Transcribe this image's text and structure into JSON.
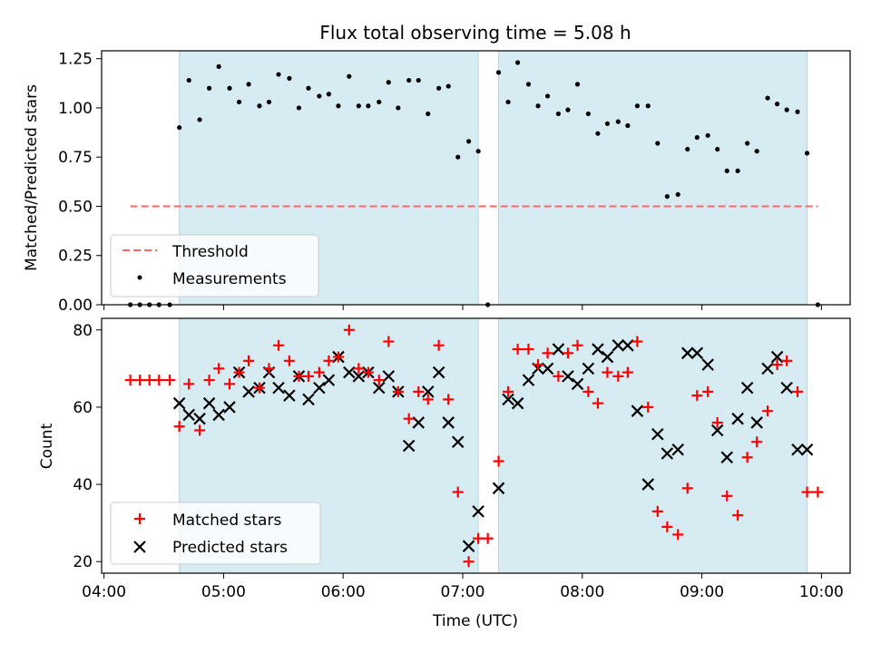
{
  "chart_data": {
    "title": "Flux total observing time = 5.08 h",
    "xlabel": "Time (UTC)",
    "x_ticks": [
      "04:00",
      "05:00",
      "06:00",
      "07:00",
      "08:00",
      "09:00",
      "10:00"
    ],
    "x_range_hours": [
      3.98,
      10.24
    ],
    "shaded_intervals_hours": [
      [
        4.63,
        7.13
      ],
      [
        7.3,
        9.88
      ]
    ],
    "colors": {
      "shade": "#add8e6",
      "threshold": "#ff6666",
      "matched": "#ff0000",
      "predicted": "#000000",
      "measurements": "#000000"
    },
    "charts": [
      {
        "type": "scatter",
        "ylabel": "Matched/Predicted stars",
        "ylim": [
          0,
          1.29
        ],
        "y_ticks": [
          "0.00",
          "0.25",
          "0.50",
          "0.75",
          "1.00",
          "1.25"
        ],
        "legend": {
          "placement": "lower-left",
          "entries": [
            "Threshold",
            "Measurements"
          ]
        },
        "threshold": {
          "name": "Threshold",
          "y": 0.5,
          "x_range": [
            4.22,
            9.97
          ]
        },
        "series": [
          {
            "name": "Measurements",
            "x": [
              4.22,
              4.3,
              4.38,
              4.46,
              4.55,
              4.63,
              4.71,
              4.8,
              4.88,
              4.96,
              5.05,
              5.13,
              5.21,
              5.3,
              5.38,
              5.46,
              5.55,
              5.63,
              5.71,
              5.8,
              5.88,
              5.96,
              6.05,
              6.13,
              6.21,
              6.3,
              6.38,
              6.46,
              6.55,
              6.63,
              6.71,
              6.8,
              6.88,
              6.96,
              7.05,
              7.13,
              7.21,
              7.3,
              7.38,
              7.46,
              7.55,
              7.63,
              7.71,
              7.8,
              7.88,
              7.96,
              8.05,
              8.13,
              8.21,
              8.3,
              8.38,
              8.46,
              8.55,
              8.63,
              8.71,
              8.8,
              8.88,
              8.96,
              9.05,
              9.13,
              9.21,
              9.3,
              9.38,
              9.46,
              9.55,
              9.63,
              9.71,
              9.8,
              9.88,
              9.97
            ],
            "y": [
              0,
              0,
              0,
              0,
              0,
              0.9,
              1.14,
              0.94,
              1.1,
              1.21,
              1.1,
              1.03,
              1.12,
              1.01,
              1.03,
              1.17,
              1.15,
              1.0,
              1.1,
              1.06,
              1.07,
              1.01,
              1.16,
              1.01,
              1.01,
              1.03,
              1.13,
              1.0,
              1.14,
              1.14,
              0.97,
              1.1,
              1.11,
              0.75,
              0.83,
              0.78,
              0.0,
              1.18,
              1.03,
              1.23,
              1.12,
              1.01,
              1.06,
              0.97,
              0.99,
              1.12,
              0.97,
              0.87,
              0.92,
              0.93,
              0.91,
              1.01,
              1.01,
              0.82,
              0.55,
              0.56,
              0.79,
              0.85,
              0.86,
              0.79,
              0.68,
              0.68,
              0.82,
              0.78,
              1.05,
              1.02,
              0.99,
              0.98,
              0.77,
              0.0
            ]
          }
        ]
      },
      {
        "type": "scatter",
        "ylabel": "Count",
        "ylim": [
          17,
          83
        ],
        "y_ticks": [
          "20",
          "40",
          "60",
          "80"
        ],
        "legend": {
          "placement": "lower-left",
          "entries": [
            "Matched stars",
            "Predicted stars"
          ]
        },
        "series": [
          {
            "name": "Matched stars",
            "x": [
              4.22,
              4.3,
              4.38,
              4.46,
              4.55,
              4.63,
              4.71,
              4.8,
              4.88,
              4.96,
              5.05,
              5.13,
              5.21,
              5.3,
              5.38,
              5.46,
              5.55,
              5.63,
              5.71,
              5.8,
              5.88,
              5.96,
              6.05,
              6.13,
              6.21,
              6.3,
              6.38,
              6.46,
              6.55,
              6.63,
              6.71,
              6.8,
              6.88,
              6.96,
              7.05,
              7.13,
              7.21,
              7.3,
              7.38,
              7.46,
              7.55,
              7.63,
              7.71,
              7.8,
              7.88,
              7.96,
              8.05,
              8.13,
              8.21,
              8.3,
              8.38,
              8.46,
              8.55,
              8.63,
              8.71,
              8.8,
              8.88,
              8.96,
              9.05,
              9.13,
              9.21,
              9.3,
              9.38,
              9.46,
              9.55,
              9.63,
              9.71,
              9.8,
              9.88,
              9.97
            ],
            "y": [
              67,
              67,
              67,
              67,
              67,
              55,
              66,
              54,
              67,
              70,
              66,
              69,
              72,
              65,
              70,
              76,
              72,
              68,
              68,
              69,
              72,
              73,
              80,
              70,
              69,
              67,
              77,
              64,
              57,
              64,
              62,
              76,
              62,
              38,
              20,
              26,
              26,
              46,
              64,
              75,
              75,
              71,
              74,
              68,
              74,
              76,
              64,
              61,
              69,
              68,
              69,
              77,
              60,
              33,
              29,
              27,
              39,
              63,
              64,
              56,
              37,
              32,
              47,
              51,
              59,
              71,
              72,
              64,
              38,
              38
            ]
          },
          {
            "name": "Predicted stars",
            "x": [
              4.63,
              4.71,
              4.8,
              4.88,
              4.96,
              5.05,
              5.13,
              5.21,
              5.3,
              5.38,
              5.46,
              5.55,
              5.63,
              5.71,
              5.8,
              5.88,
              5.96,
              6.05,
              6.13,
              6.21,
              6.3,
              6.38,
              6.46,
              6.55,
              6.63,
              6.71,
              6.8,
              6.88,
              6.96,
              7.05,
              7.13,
              7.3,
              7.38,
              7.46,
              7.55,
              7.63,
              7.71,
              7.8,
              7.88,
              7.96,
              8.05,
              8.13,
              8.21,
              8.3,
              8.38,
              8.46,
              8.55,
              8.63,
              8.71,
              8.8,
              8.88,
              8.96,
              9.05,
              9.13,
              9.21,
              9.3,
              9.38,
              9.46,
              9.55,
              9.63,
              9.71,
              9.8,
              9.88
            ],
            "y": [
              61,
              58,
              57,
              61,
              58,
              60,
              69,
              64,
              65,
              69,
              65,
              63,
              68,
              62,
              65,
              67,
              73,
              69,
              68,
              69,
              65,
              68,
              64,
              50,
              56,
              64,
              69,
              56,
              51,
              24,
              33,
              39,
              62,
              61,
              67,
              70,
              70,
              75,
              68,
              66,
              70,
              75,
              73,
              76,
              76,
              59,
              40,
              53,
              48,
              49,
              74,
              74,
              71,
              54,
              47,
              57,
              65,
              56,
              70,
              73,
              65,
              49,
              49
            ]
          }
        ]
      }
    ]
  }
}
